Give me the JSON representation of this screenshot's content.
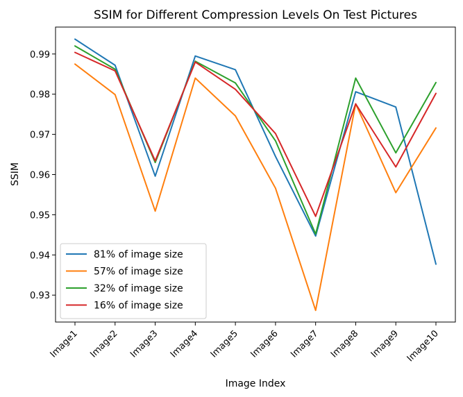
{
  "chart_data": {
    "type": "line",
    "title": "SSIM for Different Compression Levels On Test Pictures",
    "xlabel": "Image Index",
    "ylabel": "SSIM",
    "categories": [
      "Image1",
      "Image2",
      "Image3",
      "Image4",
      "Image5",
      "Image6",
      "Image7",
      "Image8",
      "Image9",
      "Image10"
    ],
    "ylim": [
      0.9233,
      0.9967
    ],
    "yticks": [
      0.93,
      0.94,
      0.95,
      0.96,
      0.97,
      0.98,
      0.99
    ],
    "ytick_labels": [
      "0.93",
      "0.94",
      "0.95",
      "0.96",
      "0.97",
      "0.98",
      "0.99"
    ],
    "grid": false,
    "legend_position": "lower-left",
    "series": [
      {
        "name": "81% of image size",
        "color": "#1f77b4",
        "values": [
          0.9937,
          0.9872,
          0.9596,
          0.9895,
          0.9861,
          0.9645,
          0.9447,
          0.9806,
          0.9768,
          0.9377
        ]
      },
      {
        "name": "57% of image size",
        "color": "#ff7f0e",
        "values": [
          0.9875,
          0.9799,
          0.9509,
          0.984,
          0.9746,
          0.9566,
          0.9262,
          0.9776,
          0.9555,
          0.9716
        ]
      },
      {
        "name": "32% of image size",
        "color": "#2ca02c",
        "values": [
          0.992,
          0.9862,
          0.963,
          0.9882,
          0.9828,
          0.9684,
          0.9452,
          0.984,
          0.9654,
          0.9829
        ]
      },
      {
        "name": "16% of image size",
        "color": "#d62728",
        "values": [
          0.9904,
          0.9858,
          0.9634,
          0.988,
          0.9812,
          0.9702,
          0.9496,
          0.9776,
          0.9619,
          0.9802
        ]
      }
    ]
  }
}
